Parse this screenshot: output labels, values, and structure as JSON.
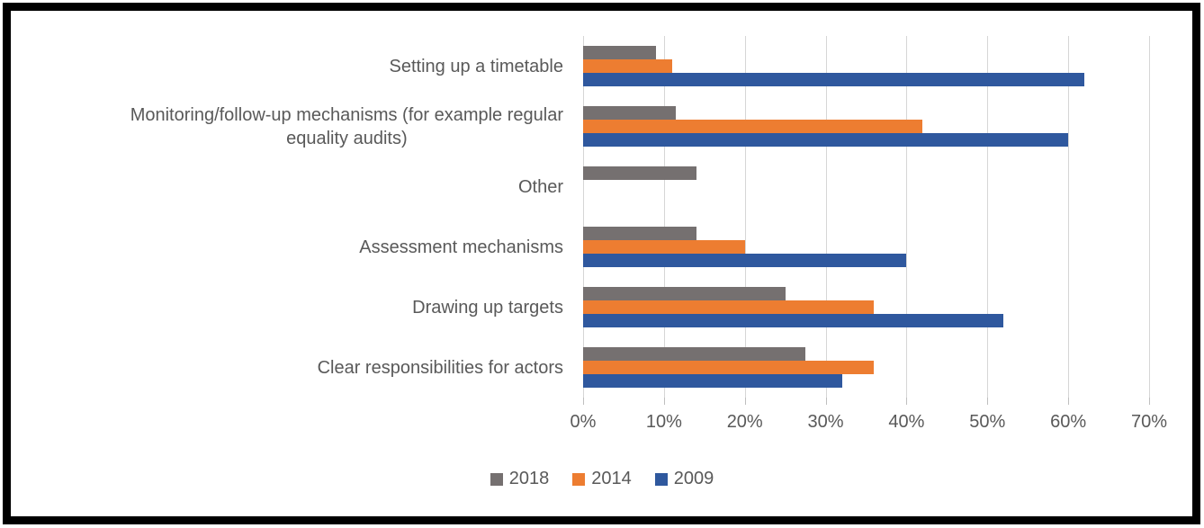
{
  "page": {
    "background_color": "#ffffff",
    "frame_border_color": "#000000",
    "text_color": "#595959",
    "gridline_color": "#d6d6d6",
    "tick_color": "#bfbfbf"
  },
  "chart_data": {
    "type": "bar",
    "orientation": "horizontal",
    "title": "",
    "xlabel": "",
    "ylabel": "",
    "xlim": [
      0,
      70
    ],
    "grid": true,
    "legend_position": "bottom",
    "x_ticks": [
      "0%",
      "10%",
      "20%",
      "30%",
      "40%",
      "50%",
      "60%",
      "70%"
    ],
    "categories": [
      "Setting up a timetable",
      "Monitoring/follow-up mechanisms (for example regular\nequality audits)",
      "Other",
      "Assessment mechanisms",
      "Drawing up targets",
      "Clear responsibilities for actors"
    ],
    "series": [
      {
        "name": "2018",
        "color": "#757070",
        "values": [
          9,
          11.5,
          14,
          14,
          25,
          27.5
        ]
      },
      {
        "name": "2014",
        "color": "#ed7d31",
        "values": [
          11,
          42,
          0,
          20,
          36,
          36
        ]
      },
      {
        "name": "2009",
        "color": "#2f589e",
        "values": [
          62,
          60,
          0,
          40,
          52,
          32
        ]
      }
    ]
  }
}
